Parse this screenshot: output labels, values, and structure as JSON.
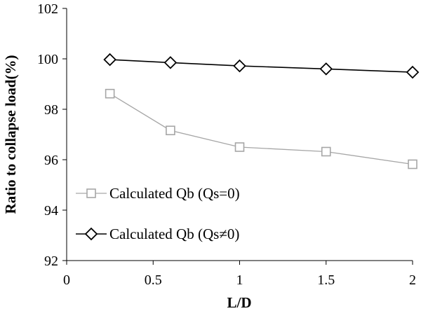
{
  "chart_data": {
    "type": "line",
    "title": "",
    "xlabel": "L/D",
    "ylabel": "Ratio to collapse load(%)",
    "xlim": [
      0,
      2
    ],
    "ylim": [
      92,
      102
    ],
    "x_ticks": [
      "0",
      "0.5",
      "1",
      "1.5",
      "2"
    ],
    "y_ticks": [
      "92",
      "94",
      "96",
      "98",
      "100",
      "102"
    ],
    "grid": false,
    "legend_position": "bottom-left",
    "series": [
      {
        "name": "Calculated Qb (Qs=0)",
        "marker": "square",
        "color": "#a6a6a6",
        "x": [
          0.25,
          0.6,
          1,
          1.5,
          2
        ],
        "y": [
          98.62,
          97.16,
          96.5,
          96.32,
          95.82
        ]
      },
      {
        "name": "Calculated Qb (Qs≠0)",
        "marker": "diamond",
        "color": "#000000",
        "x": [
          0.25,
          0.6,
          1,
          1.5,
          2
        ],
        "y": [
          99.97,
          99.85,
          99.72,
          99.6,
          99.47
        ]
      }
    ]
  }
}
